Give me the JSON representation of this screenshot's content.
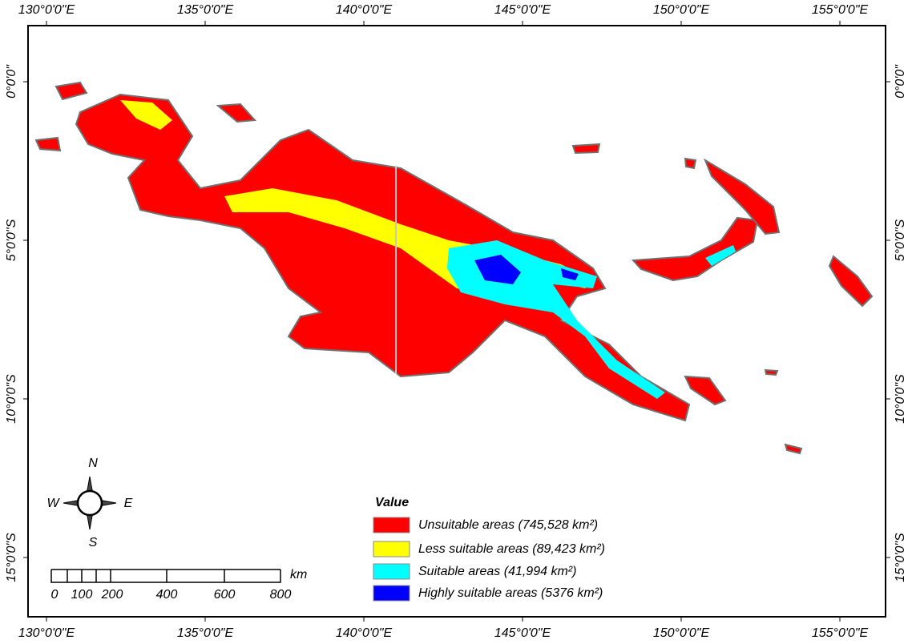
{
  "map": {
    "longitude_labels": [
      "130°0'0\"E",
      "135°0'0\"E",
      "140°0'0\"E",
      "145°0'0\"E",
      "150°0'0\"E",
      "155°0'0\"E"
    ],
    "latitude_labels": [
      "0°0'0\"",
      "5°0'0\"S",
      "10°0'0\"S",
      "15°0'0\"S"
    ],
    "compass": {
      "north": "N",
      "south": "S",
      "east": "E",
      "west": "W"
    },
    "scale_bar": {
      "labels": [
        0,
        100,
        200,
        400,
        600,
        800
      ],
      "unit": "km"
    },
    "legend": {
      "title": "Value",
      "items": [
        {
          "label": "Unsuitable areas (745,528 km²)",
          "color": "#ff0000"
        },
        {
          "label": "Less suitable areas (89,423 km²)",
          "color": "#ffff00"
        },
        {
          "label": "Suitable areas (41,994 km²)",
          "color": "#00ffff"
        },
        {
          "label": "Highly suitable areas (5376 km²)",
          "color": "#0000ff"
        }
      ]
    }
  }
}
